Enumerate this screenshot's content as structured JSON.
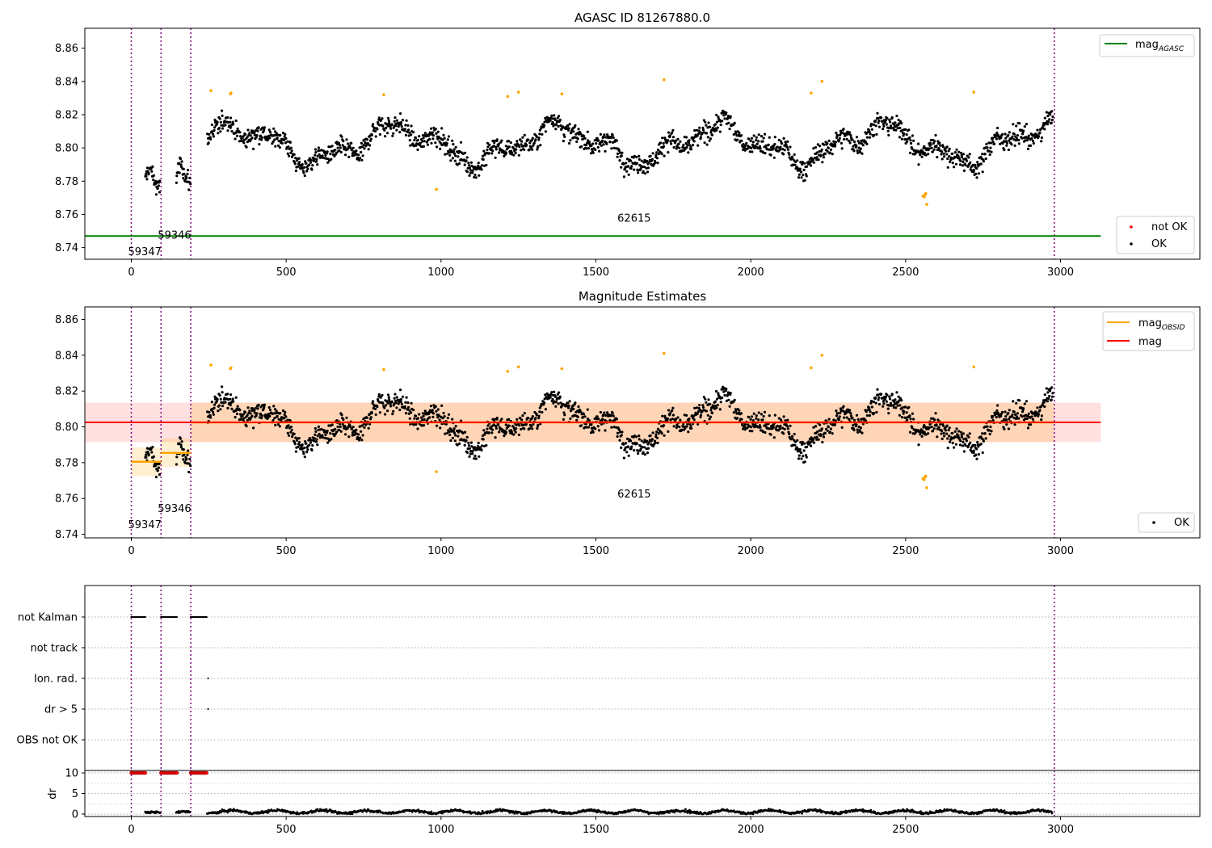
{
  "chart_data": [
    {
      "type": "scatter",
      "title": "AGASC ID 81267880.0",
      "xlim": [
        -150,
        3450
      ],
      "ylim": [
        8.733,
        8.872
      ],
      "xticks": [
        "0",
        "500",
        "1000",
        "1500",
        "2000",
        "2500",
        "3000"
      ],
      "yticks": [
        "8.74",
        "8.76",
        "8.78",
        "8.80",
        "8.82",
        "8.84",
        "8.86"
      ],
      "grid": false,
      "obsid_boundaries": [
        0,
        96,
        192,
        2980
      ],
      "obsid_labels": [
        {
          "text": "59347",
          "x": 0,
          "y": 8.7355
        },
        {
          "text": "59346",
          "x": 96,
          "y": 8.7455
        },
        {
          "text": "62615",
          "x": 1580,
          "y": 8.7555
        }
      ],
      "series": [
        {
          "name": "OK",
          "color": "#000000"
        },
        {
          "name": "not OK",
          "color": "#ff0000"
        }
      ],
      "outlier_color": "#ffa500",
      "agasc_line": {
        "name": "mag_AGASC",
        "value": 8.747,
        "color": "#008000",
        "x_end": 3130
      },
      "legend_upper": {
        "placement": "upper right",
        "entries": [
          {
            "label": "mag",
            "sub": "AGASC",
            "color": "#008000"
          }
        ]
      },
      "legend_lower": {
        "placement": "lower right",
        "entries": [
          {
            "label": "not OK",
            "color": "#ff0000"
          },
          {
            "label": "OK",
            "color": "#000000"
          }
        ]
      }
    },
    {
      "type": "scatter",
      "title": "Magnitude Estimates",
      "xlim": [
        -150,
        3450
      ],
      "ylim": [
        8.738,
        8.867
      ],
      "xticks": [
        "0",
        "500",
        "1000",
        "1500",
        "2000",
        "2500",
        "3000"
      ],
      "yticks": [
        "8.74",
        "8.76",
        "8.78",
        "8.80",
        "8.82",
        "8.84",
        "8.86"
      ],
      "grid": false,
      "obsid_labels": [
        {
          "text": "59347",
          "x": 0,
          "y": 8.7435
        },
        {
          "text": "59346",
          "x": 96,
          "y": 8.7525
        },
        {
          "text": "62615",
          "x": 1580,
          "y": 8.7605
        }
      ],
      "mag_line": {
        "name": "mag",
        "value": 8.8025,
        "band": [
          8.7915,
          8.8135
        ],
        "color": "#ff0000",
        "x_end": 3130
      },
      "obsid_mags": [
        {
          "x0": 0,
          "x1": 96,
          "value": 8.7805,
          "band": [
            8.7725,
            8.7885
          ]
        },
        {
          "x0": 96,
          "x1": 192,
          "value": 8.7855,
          "band": [
            8.7775,
            8.7935
          ]
        },
        {
          "x0": 192,
          "x1": 2980,
          "value": 8.8025,
          "band": [
            8.7915,
            8.8135
          ]
        }
      ],
      "legend_upper": {
        "placement": "upper right",
        "entries": [
          {
            "label": "mag",
            "sub": "OBSID",
            "color": "#ffa500"
          },
          {
            "label": "mag",
            "color": "#ff0000"
          }
        ]
      },
      "legend_lower": {
        "placement": "lower right",
        "entries": [
          {
            "label": "OK",
            "color": "#000000"
          }
        ]
      }
    },
    {
      "type": "scatter",
      "title": "",
      "xlim": [
        -150,
        3450
      ],
      "flag_categories": [
        "not Kalman",
        "not track",
        "Ion. rad.",
        "dr > 5",
        "OBS not OK"
      ],
      "flag_segments": [
        {
          "flag": "not Kalman",
          "x0": 0,
          "x1": 45
        },
        {
          "flag": "not Kalman",
          "x0": 96,
          "x1": 148
        },
        {
          "flag": "not Kalman",
          "x0": 192,
          "x1": 245
        }
      ],
      "flag_points": [
        {
          "flag": "Ion. rad.",
          "x": 248
        },
        {
          "flag": "dr > 5",
          "x": 248
        }
      ]
    },
    {
      "type": "scatter",
      "title": "",
      "ylabel": "dr",
      "xlim": [
        -150,
        3450
      ],
      "ylim": [
        -0.6,
        10.6
      ],
      "xticks": [
        "0",
        "500",
        "1000",
        "1500",
        "2000",
        "2500",
        "3000"
      ],
      "yticks": [
        "0",
        "5",
        "10"
      ],
      "clipped_segments": [
        {
          "x0": 0,
          "x1": 45
        },
        {
          "x0": 96,
          "x1": 148
        },
        {
          "x0": 192,
          "x1": 245
        }
      ],
      "clipped_value": 10
    }
  ]
}
